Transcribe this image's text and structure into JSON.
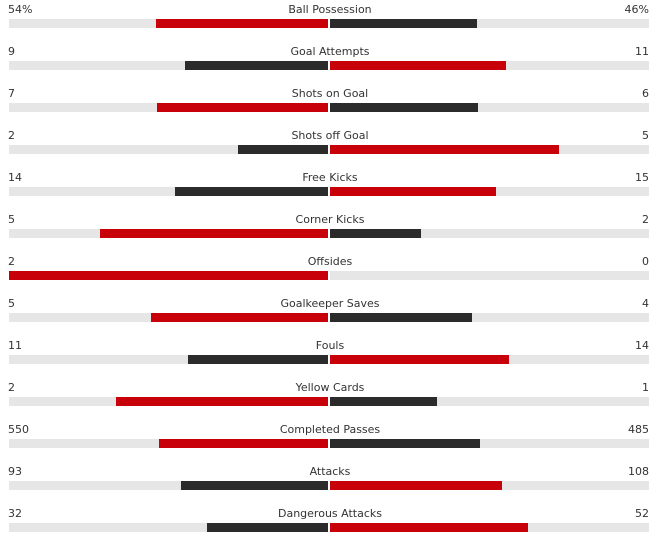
{
  "colors": {
    "winner": "#c8000a",
    "loser": "#2b2b2b",
    "track": "#e6e6e6"
  },
  "stats": [
    {
      "label": "Ball Possession",
      "home": "54%",
      "away": "46%",
      "home_value": 54,
      "away_value": 46
    },
    {
      "label": "Goal Attempts",
      "home": "9",
      "away": "11",
      "home_value": 9,
      "away_value": 11
    },
    {
      "label": "Shots on Goal",
      "home": "7",
      "away": "6",
      "home_value": 7,
      "away_value": 6
    },
    {
      "label": "Shots off Goal",
      "home": "2",
      "away": "5",
      "home_value": 2,
      "away_value": 5
    },
    {
      "label": "Free Kicks",
      "home": "14",
      "away": "15",
      "home_value": 14,
      "away_value": 15
    },
    {
      "label": "Corner Kicks",
      "home": "5",
      "away": "2",
      "home_value": 5,
      "away_value": 2
    },
    {
      "label": "Offsides",
      "home": "2",
      "away": "0",
      "home_value": 2,
      "away_value": 0
    },
    {
      "label": "Goalkeeper Saves",
      "home": "5",
      "away": "4",
      "home_value": 5,
      "away_value": 4
    },
    {
      "label": "Fouls",
      "home": "11",
      "away": "14",
      "home_value": 11,
      "away_value": 14
    },
    {
      "label": "Yellow Cards",
      "home": "2",
      "away": "1",
      "home_value": 2,
      "away_value": 1
    },
    {
      "label": "Completed Passes",
      "home": "550",
      "away": "485",
      "home_value": 550,
      "away_value": 485
    },
    {
      "label": "Attacks",
      "home": "93",
      "away": "108",
      "home_value": 93,
      "away_value": 108
    },
    {
      "label": "Dangerous Attacks",
      "home": "32",
      "away": "52",
      "home_value": 32,
      "away_value": 52
    }
  ]
}
